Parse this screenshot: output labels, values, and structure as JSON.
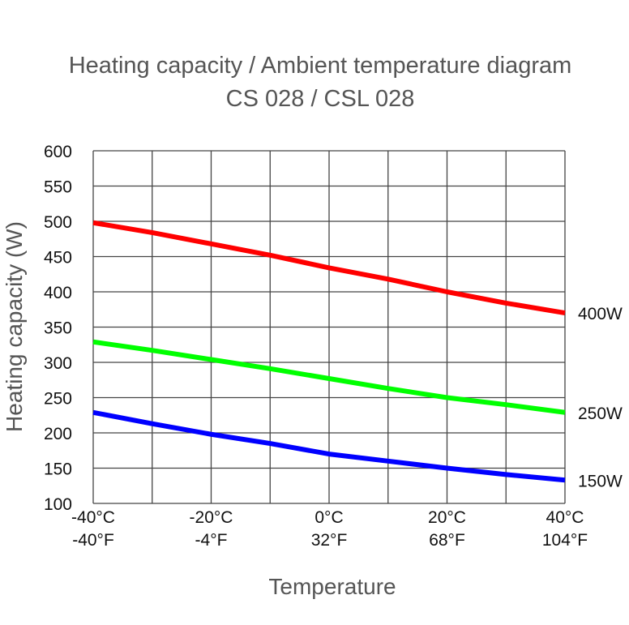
{
  "chart_data": {
    "type": "line",
    "title": [
      "Heating capacity / Ambient temperature diagram",
      "CS 028 / CSL 028"
    ],
    "xlabel": "Temperature",
    "ylabel": "Heating capacity (W)",
    "x": [
      -40,
      -30,
      -20,
      -10,
      0,
      10,
      20,
      30,
      40
    ],
    "xlim": [
      -40,
      40
    ],
    "ylim": [
      100,
      600
    ],
    "grid": true,
    "x_ticks": [
      {
        "value": -40,
        "c": "-40°C",
        "f": "-40°F"
      },
      {
        "value": -20,
        "c": "-20°C",
        "f": "-4°F"
      },
      {
        "value": 0,
        "c": "0°C",
        "f": "32°F"
      },
      {
        "value": 20,
        "c": "20°C",
        "f": "68°F"
      },
      {
        "value": 40,
        "c": "40°C",
        "f": "104°F"
      }
    ],
    "y_ticks": [
      "100",
      "150",
      "200",
      "250",
      "300",
      "350",
      "400",
      "450",
      "500",
      "550",
      "600"
    ],
    "series": [
      {
        "name": "400W",
        "color": "#ff0000",
        "values": [
          498,
          484,
          468,
          452,
          434,
          418,
          400,
          384,
          370
        ]
      },
      {
        "name": "250W",
        "color": "#00ff00",
        "values": [
          329,
          317,
          304,
          291,
          277,
          263,
          250,
          240,
          229
        ]
      },
      {
        "name": "150W",
        "color": "#0000ff",
        "values": [
          229,
          213,
          198,
          185,
          170,
          160,
          150,
          141,
          133
        ]
      }
    ]
  }
}
